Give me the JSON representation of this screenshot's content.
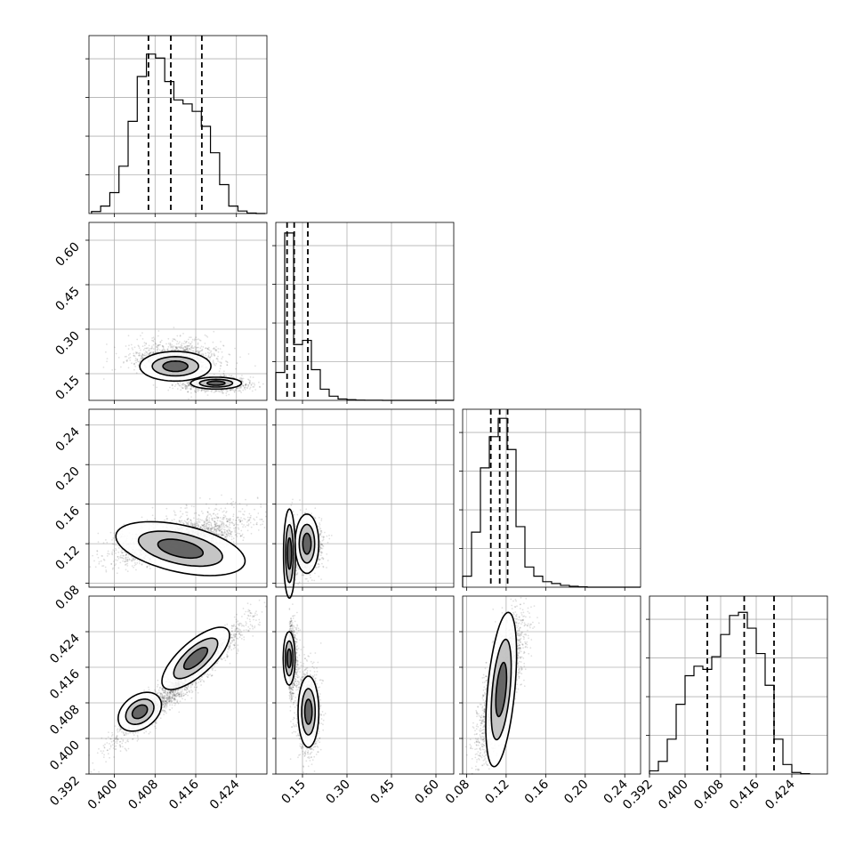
{
  "chart_data": {
    "type": "corner",
    "parameters": 4,
    "grid": true,
    "axes": [
      {
        "xlim": [
          0.395,
          0.43
        ],
        "xticks": [
          "0.400",
          "0.408",
          "0.416",
          "0.424"
        ],
        "xvals": [
          0.4,
          0.408,
          0.416,
          0.424
        ]
      },
      {
        "lim": [
          0.06,
          0.66
        ],
        "ticks": [
          "0.15",
          "0.30",
          "0.45",
          "0.60"
        ],
        "vals": [
          0.15,
          0.3,
          0.45,
          0.6
        ]
      },
      {
        "lim": [
          0.076,
          0.256
        ],
        "ticks": [
          "0.08",
          "0.12",
          "0.16",
          "0.20",
          "0.24"
        ],
        "vals": [
          0.08,
          0.12,
          0.16,
          0.2,
          0.24
        ]
      },
      {
        "lim": [
          0.392,
          0.432
        ],
        "ticks": [
          "0.392",
          "0.400",
          "0.408",
          "0.416",
          "0.424"
        ],
        "vals": [
          0.392,
          0.4,
          0.408,
          0.416,
          0.424
        ]
      }
    ],
    "histograms": [
      {
        "bin_edges": [
          0.3955,
          0.3973,
          0.3991,
          0.4009,
          0.4027,
          0.4045,
          0.4063,
          0.4081,
          0.4099,
          0.4117,
          0.4135,
          0.4153,
          0.4171,
          0.4189,
          0.4207,
          0.4225,
          0.4243,
          0.4261,
          0.4279,
          0.4297
        ],
        "counts": [
          0.4,
          1.5,
          4.2,
          9.5,
          18.5,
          27.5,
          32.0,
          31.2,
          26.5,
          22.8,
          22.0,
          20.5,
          17.5,
          12.2,
          5.8,
          1.5,
          0.5,
          0.1,
          0.0
        ],
        "ymax": 35,
        "quantiles": [
          0.4067,
          0.4111,
          0.4172
        ]
      },
      {
        "bin_edges": [
          0.06,
          0.09,
          0.12,
          0.15,
          0.18,
          0.21,
          0.24,
          0.27,
          0.3,
          0.33,
          0.36,
          0.39,
          0.42,
          0.45,
          0.48,
          0.51,
          0.54,
          0.57,
          0.6,
          0.63,
          0.66
        ],
        "counts": [
          20,
          120,
          40,
          43,
          22,
          8,
          3,
          1,
          0.5,
          0.2,
          0.1,
          0.1,
          0,
          0,
          0,
          0,
          0,
          0,
          0,
          0
        ],
        "ymax": 125,
        "quantiles": [
          0.098,
          0.122,
          0.168
        ]
      },
      {
        "bin_edges": [
          0.076,
          0.085,
          0.094,
          0.103,
          0.112,
          0.121,
          0.13,
          0.139,
          0.148,
          0.157,
          0.166,
          0.175,
          0.184,
          0.193,
          0.202,
          0.211,
          0.22,
          0.229,
          0.238,
          0.247,
          0.256
        ],
        "counts": [
          6,
          30,
          65,
          82,
          92,
          75,
          33,
          11,
          6,
          3,
          2,
          1,
          0.5,
          0.2,
          0,
          0,
          0,
          0,
          0,
          0
        ],
        "ymax": 95,
        "quantiles": [
          0.1045,
          0.1135,
          0.1215
        ]
      },
      {
        "bin_edges": [
          0.392,
          0.394,
          0.396,
          0.398,
          0.4,
          0.402,
          0.404,
          0.406,
          0.408,
          0.41,
          0.412,
          0.414,
          0.416,
          0.418,
          0.42,
          0.422,
          0.424,
          0.426,
          0.428
        ],
        "counts": [
          1,
          4,
          11,
          22,
          31,
          34,
          33,
          37,
          44,
          50,
          51,
          46,
          38,
          28,
          11,
          3,
          0.5,
          0.1
        ],
        "ymax": 55,
        "quantiles": [
          0.405,
          0.4133,
          0.42
        ]
      }
    ],
    "scatter_pairs": [
      {
        "x": 0,
        "y": 1
      },
      {
        "x": 0,
        "y": 2
      },
      {
        "x": 1,
        "y": 2
      },
      {
        "x": 0,
        "y": 3
      },
      {
        "x": 1,
        "y": 3
      },
      {
        "x": 2,
        "y": 3
      }
    ]
  }
}
